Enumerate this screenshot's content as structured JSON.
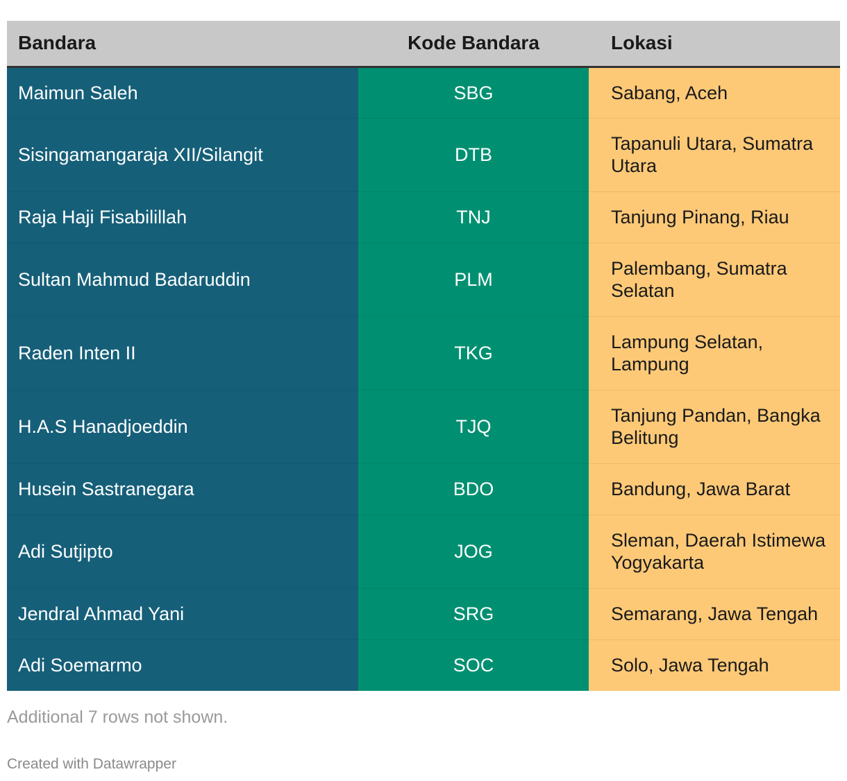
{
  "table": {
    "headers": {
      "name": "Bandara",
      "code": "Kode Bandara",
      "location": "Lokasi"
    },
    "rows": [
      {
        "name": "Maimun Saleh",
        "code": "SBG",
        "location": "Sabang, Aceh"
      },
      {
        "name": "Sisingamangaraja XII/Silangit",
        "code": "DTB",
        "location": "Tapanuli Utara, Sumatra Utara"
      },
      {
        "name": "Raja Haji Fisabilillah",
        "code": "TNJ",
        "location": "Tanjung Pinang, Riau"
      },
      {
        "name": "Sultan Mahmud Badaruddin",
        "code": "PLM",
        "location": "Palembang, Sumatra Selatan"
      },
      {
        "name": "Raden Inten II",
        "code": "TKG",
        "location": "Lampung Selatan, Lampung"
      },
      {
        "name": "H.A.S Hanadjoeddin",
        "code": "TJQ",
        "location": "Tanjung Pandan, Bangka Belitung"
      },
      {
        "name": "Husein Sastranegara",
        "code": "BDO",
        "location": "Bandung, Jawa Barat"
      },
      {
        "name": "Adi Sutjipto",
        "code": "JOG",
        "location": "Sleman, Daerah Istimewa Yogyakarta"
      },
      {
        "name": "Jendral Ahmad Yani",
        "code": "SRG",
        "location": "Semarang, Jawa Tengah"
      },
      {
        "name": "Adi Soemarmo",
        "code": "SOC",
        "location": "Solo, Jawa Tengah"
      }
    ]
  },
  "footer": {
    "note": "Additional 7 rows not shown.",
    "credit": "Created with Datawrapper"
  },
  "colors": {
    "header_bg": "#c8c8c8",
    "name_column": "#165f79",
    "code_column": "#009071",
    "location_column": "#fdc977"
  },
  "chart_data": {
    "type": "table",
    "columns": [
      "Bandara",
      "Kode Bandara",
      "Lokasi"
    ],
    "rows": [
      [
        "Maimun Saleh",
        "SBG",
        "Sabang, Aceh"
      ],
      [
        "Sisingamangaraja XII/Silangit",
        "DTB",
        "Tapanuli Utara, Sumatra Utara"
      ],
      [
        "Raja Haji Fisabilillah",
        "TNJ",
        "Tanjung Pinang, Riau"
      ],
      [
        "Sultan Mahmud Badaruddin",
        "PLM",
        "Palembang, Sumatra Selatan"
      ],
      [
        "Raden Inten II",
        "TKG",
        "Lampung Selatan, Lampung"
      ],
      [
        "H.A.S Hanadjoeddin",
        "TJQ",
        "Tanjung Pandan, Bangka Belitung"
      ],
      [
        "Husein Sastranegara",
        "BDO",
        "Bandung, Jawa Barat"
      ],
      [
        "Adi Sutjipto",
        "JOG",
        "Sleman, Daerah Istimewa Yogyakarta"
      ],
      [
        "Jendral Ahmad Yani",
        "SRG",
        "Semarang, Jawa Tengah"
      ],
      [
        "Adi Soemarmo",
        "SOC",
        "Solo, Jawa Tengah"
      ]
    ]
  }
}
